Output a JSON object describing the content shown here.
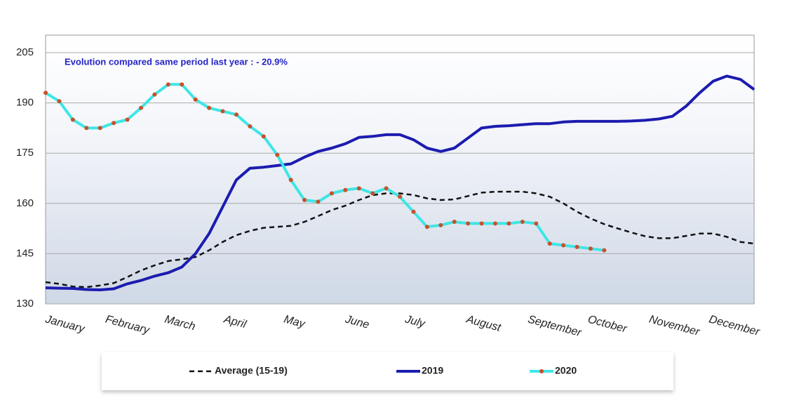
{
  "chart_data": {
    "type": "line",
    "annotation": "Evolution compared same period last year   : - 20.9%",
    "x": [
      1,
      2,
      3,
      4,
      5,
      6,
      7,
      8,
      9,
      10,
      11,
      12,
      13,
      14,
      15,
      16,
      17,
      18,
      19,
      20,
      21,
      22,
      23,
      24,
      25,
      26,
      27,
      28,
      29,
      30,
      31,
      32,
      33,
      34,
      35,
      36,
      37,
      38,
      39,
      40,
      41,
      42,
      43,
      44,
      45,
      46,
      47,
      48,
      49,
      50,
      51,
      52,
      53
    ],
    "xlim": [
      1,
      53
    ],
    "xticks": [
      {
        "value": 1,
        "label": "January"
      },
      {
        "value": 5.4,
        "label": "February"
      },
      {
        "value": 9.75,
        "label": "March"
      },
      {
        "value": 14.1,
        "label": "April"
      },
      {
        "value": 18.5,
        "label": "May"
      },
      {
        "value": 23,
        "label": "June"
      },
      {
        "value": 27.4,
        "label": "July"
      },
      {
        "value": 31.9,
        "label": "August"
      },
      {
        "value": 36.4,
        "label": "September"
      },
      {
        "value": 40.8,
        "label": "October"
      },
      {
        "value": 45.3,
        "label": "November"
      },
      {
        "value": 49.7,
        "label": "December"
      }
    ],
    "ylim": [
      130,
      205
    ],
    "yticks": [
      130,
      145,
      160,
      175,
      190,
      205
    ],
    "grid": true,
    "legend": "bottom",
    "series": [
      {
        "name": "Average (15-19)",
        "color": "#111111",
        "dashed": true,
        "values": [
          136.5,
          136,
          135.2,
          135,
          135.5,
          136.2,
          138,
          140,
          141.5,
          142.8,
          143.3,
          144,
          146,
          148.5,
          150.5,
          151.8,
          152.7,
          153,
          153.3,
          154.5,
          156.2,
          158,
          159.3,
          161,
          162.5,
          163,
          163,
          162.5,
          161.5,
          161,
          161.2,
          162.2,
          163.2,
          163.5,
          163.5,
          163.5,
          163,
          162,
          160,
          157.5,
          155.5,
          153.8,
          152.5,
          151.3,
          150.2,
          149.6,
          149.6,
          150.3,
          151,
          151,
          150,
          148.5,
          148
        ]
      },
      {
        "name": "2019",
        "color": "#1c1cb0",
        "dashed": false,
        "values": [
          134.8,
          134.7,
          134.6,
          134.3,
          134.2,
          134.5,
          136,
          137,
          138.3,
          139.3,
          141,
          145,
          151,
          159,
          167,
          170.5,
          170.8,
          171.3,
          171.8,
          173.8,
          175.5,
          176.5,
          177.8,
          179.7,
          180,
          180.5,
          180.5,
          179,
          176.5,
          175.5,
          176.5,
          179.5,
          182.5,
          183,
          183.2,
          183.5,
          183.8,
          183.8,
          184.3,
          184.5,
          184.5,
          184.5,
          184.5,
          184.6,
          184.8,
          185.2,
          186,
          189,
          193,
          196.5,
          198,
          197,
          194
        ]
      },
      {
        "name": "2020",
        "color": "#3ee6e6",
        "dashed": false,
        "marker_color": "#c8502a",
        "values": [
          193,
          190.5,
          185,
          182.5,
          182.5,
          184,
          185,
          188.5,
          192.5,
          195.5,
          195.5,
          191,
          188.5,
          187.5,
          186.5,
          183,
          180,
          174.5,
          167,
          161,
          160.5,
          163,
          164,
          164.5,
          163,
          164.5,
          162,
          157.5,
          153,
          153.5,
          154.5,
          154,
          154,
          154,
          154,
          154.5,
          154,
          148,
          147.5,
          147,
          146.5,
          146,
          null,
          null,
          null,
          null,
          null,
          null,
          null,
          null,
          null,
          null,
          null
        ]
      }
    ]
  }
}
